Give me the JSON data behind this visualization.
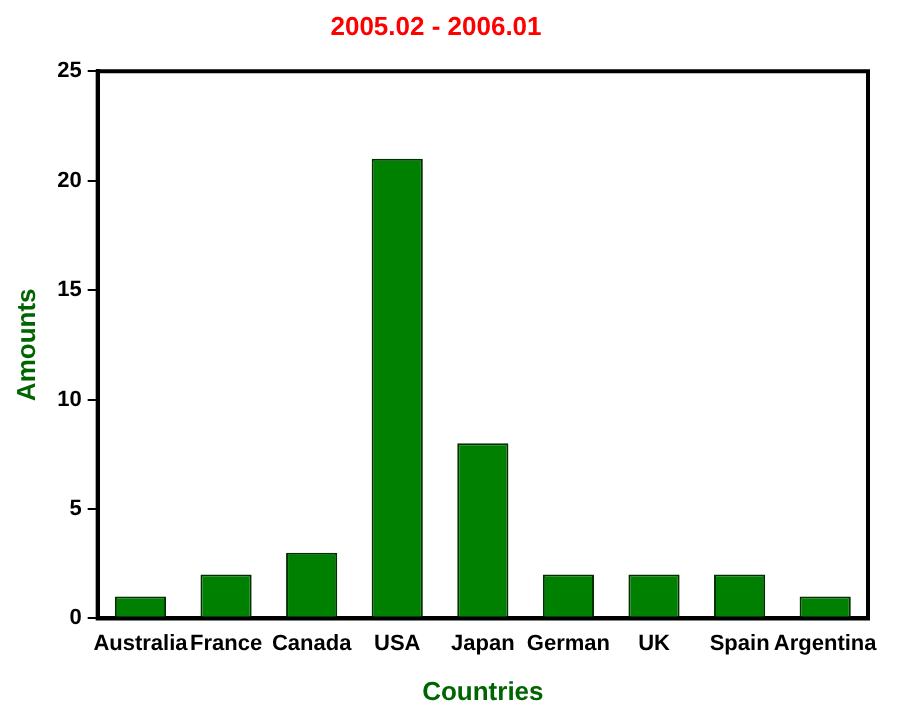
{
  "chart_data": {
    "type": "bar",
    "title": "2005.02 - 2006.01",
    "xlabel": "Countries",
    "ylabel": "Amounts",
    "categories": [
      "Australia",
      "France",
      "Canada",
      "USA",
      "Japan",
      "German",
      "UK",
      "Spain",
      "Argentina"
    ],
    "values": [
      1,
      2,
      3,
      21,
      8,
      2,
      2,
      2,
      1
    ],
    "color": "#008000",
    "ylim": [
      0,
      25
    ],
    "yticks": [
      0,
      5,
      10,
      15,
      20,
      25
    ],
    "grid": false,
    "legend": false
  }
}
